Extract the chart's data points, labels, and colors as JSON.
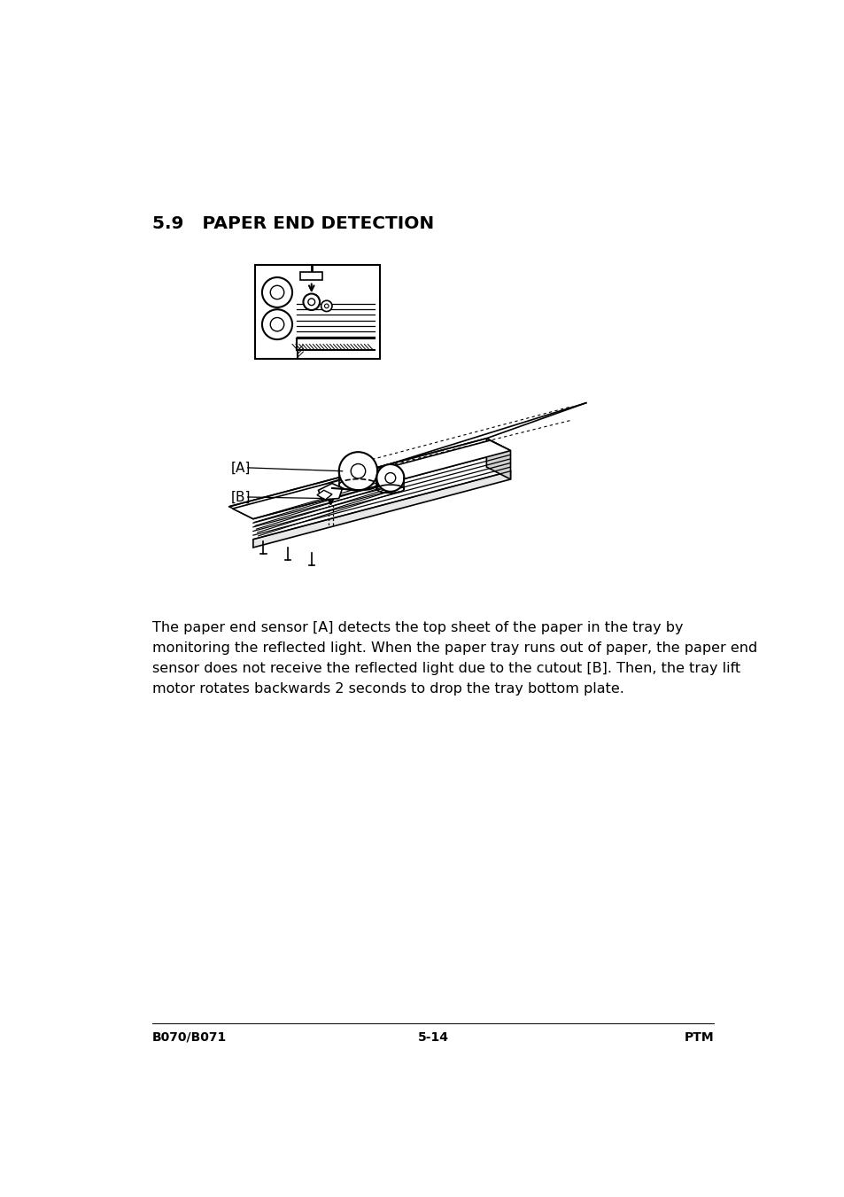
{
  "title": "5.9   PAPER END DETECTION",
  "body_text": "The paper end sensor [A] detects the top sheet of the paper in the tray by\nmonitoring the reflected light. When the paper tray runs out of paper, the paper end\nsensor does not receive the reflected light due to the cutout [B]. Then, the tray lift\nmotor rotates backwards 2 seconds to drop the tray bottom plate.",
  "footer_left": "B070/B071",
  "footer_center": "5-14",
  "footer_right": "PTM",
  "bg_color": "#ffffff",
  "text_color": "#000000",
  "title_fontsize": 14.5,
  "body_fontsize": 11.5,
  "footer_fontsize": 10
}
